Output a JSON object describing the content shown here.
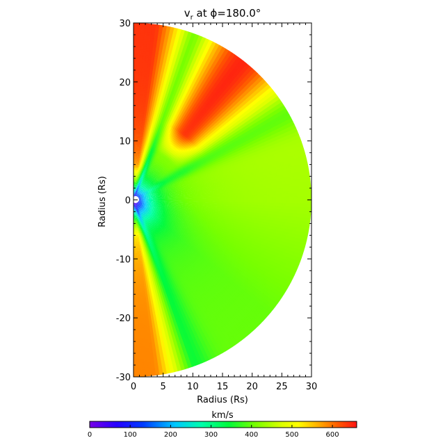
{
  "chart_data": {
    "type": "heatmap",
    "title": "v",
    "title_subscript": "r",
    "title_rest": " at ϕ=180.0°",
    "xlabel": "Radius (Rs)",
    "ylabel": "Radius (Rs)",
    "xlim": [
      0,
      30
    ],
    "ylim": [
      -30,
      30
    ],
    "xticks": [
      0,
      5,
      10,
      15,
      20,
      25,
      30
    ],
    "yticks": [
      -30,
      -20,
      -10,
      0,
      10,
      20,
      30
    ],
    "inner_radius": 0.6,
    "outer_radius": 30,
    "colorbar": {
      "label": "km/s",
      "min": 0,
      "max": 660,
      "ticks": [
        0,
        100,
        200,
        300,
        400,
        500,
        600
      ],
      "colormap": "rainbow"
    },
    "field_description_points": [
      {
        "angle_deg": 88,
        "r": 20,
        "value": 610
      },
      {
        "angle_deg": 65,
        "r": 20,
        "value": 500
      },
      {
        "angle_deg": 50,
        "r": 22,
        "value": 630
      },
      {
        "angle_deg": 30,
        "r": 20,
        "value": 440
      },
      {
        "angle_deg": 0,
        "r": 20,
        "value": 440
      },
      {
        "angle_deg": -30,
        "r": 20,
        "value": 390
      },
      {
        "angle_deg": -60,
        "r": 20,
        "value": 380
      },
      {
        "angle_deg": -82,
        "r": 22,
        "value": 600
      }
    ]
  }
}
